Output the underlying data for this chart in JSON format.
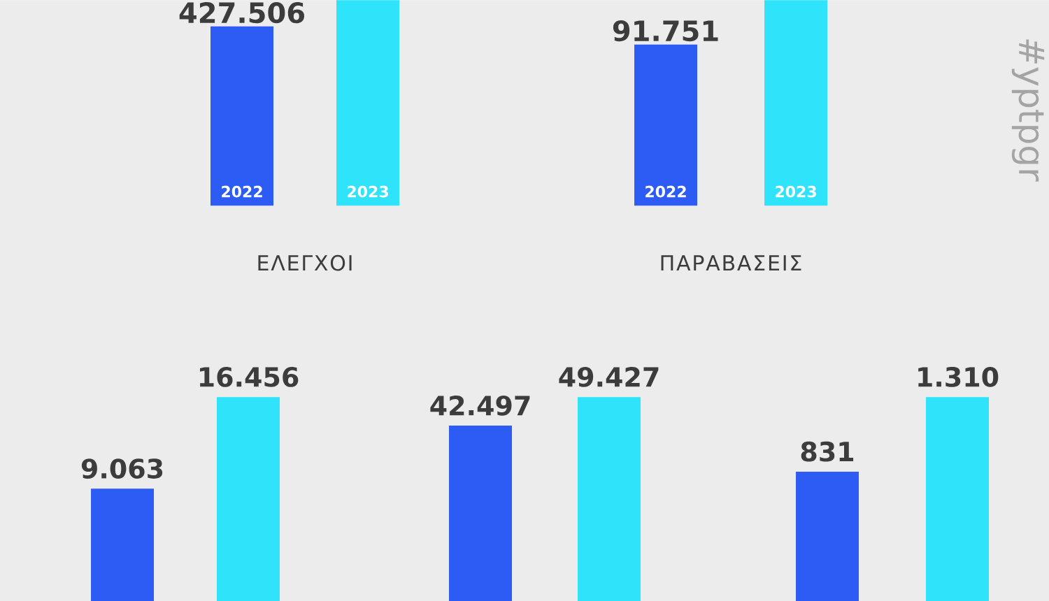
{
  "chart_data": [
    {
      "type": "bar",
      "categories": [
        "2022",
        "2023"
      ],
      "values": [
        427506,
        490000
      ],
      "colors": [
        "#2d5cf5",
        "#2fe3fb"
      ],
      "value_labels": [
        "427.506",
        null
      ],
      "xlabel": "ΕΛΕΓΧΟΙ"
    },
    {
      "type": "bar",
      "categories": [
        "2022",
        "2023"
      ],
      "values": [
        91751,
        117000
      ],
      "colors": [
        "#2d5cf5",
        "#2fe3fb"
      ],
      "value_labels": [
        "91.751",
        null
      ],
      "xlabel": "ΠΑΡΑΒΑΣΕΙΣ",
      "annotations": [
        "#yptpgr"
      ]
    },
    {
      "type": "bar",
      "categories": [
        null,
        null
      ],
      "values": [
        9063,
        16456
      ],
      "colors": [
        "#2d5cf5",
        "#2fe3fb"
      ],
      "value_labels": [
        "9.063",
        "16.456"
      ]
    },
    {
      "type": "bar",
      "categories": [
        null,
        null
      ],
      "values": [
        42497,
        49427
      ],
      "colors": [
        "#2d5cf5",
        "#2fe3fb"
      ],
      "value_labels": [
        "42.497",
        "49.427"
      ]
    },
    {
      "type": "bar",
      "categories": [
        null,
        null
      ],
      "values": [
        831,
        1310
      ],
      "colors": [
        "#2d5cf5",
        "#2fe3fb"
      ],
      "value_labels": [
        "831",
        "1.310"
      ]
    }
  ]
}
